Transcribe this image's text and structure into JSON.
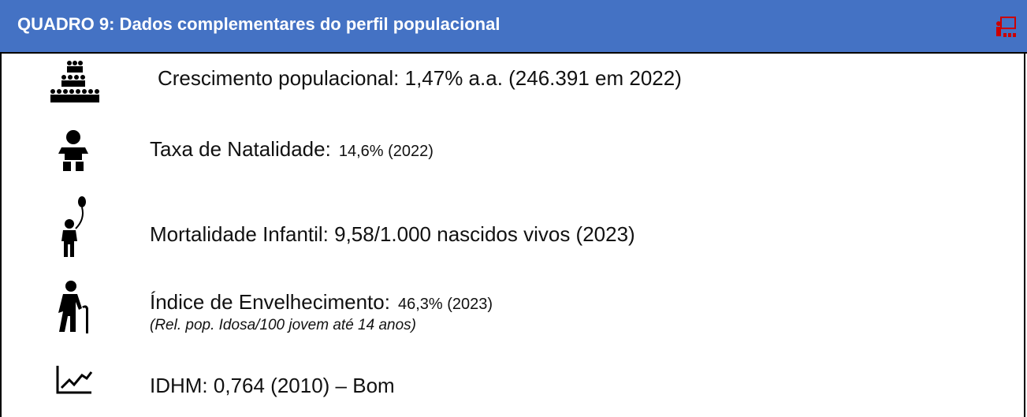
{
  "header": {
    "title": "QUADRO 9: Dados complementares do perfil populacional"
  },
  "items": [
    {
      "main": "Crescimento populacional: 1,47% a.a. (246.391 em 2022)"
    },
    {
      "main": "Taxa de Natalidade:",
      "small": "14,6% (2022)"
    },
    {
      "main": "Mortalidade Infantil: 9,58/1.000 nascidos vivos (2023)"
    },
    {
      "main": "Índice de Envelhecimento:",
      "small": "46,3% (2023)",
      "note": "(Rel. pop. Idosa/100 jovem até 14 anos)"
    },
    {
      "main": "IDHM: 0,764 (2010) – Bom"
    }
  ]
}
